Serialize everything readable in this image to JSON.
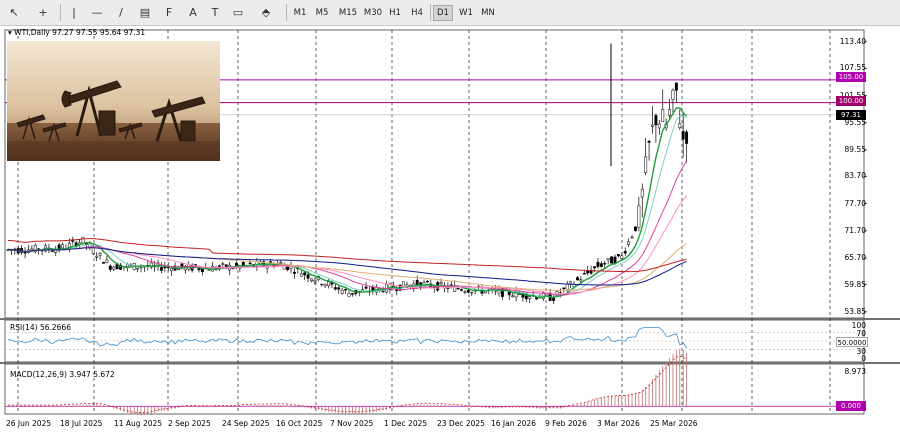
{
  "toolbar": {
    "tools": [
      {
        "name": "cursor-tool",
        "icon": "↖"
      },
      {
        "name": "crosshair-tool",
        "icon": "+"
      },
      {
        "name": "vertical-line-tool",
        "icon": "|"
      },
      {
        "name": "horizontal-line-tool",
        "icon": "—"
      },
      {
        "name": "trendline-tool",
        "icon": "/"
      },
      {
        "name": "channel-tool",
        "icon": "▤"
      },
      {
        "name": "fibonacci-tool",
        "icon": "F"
      },
      {
        "name": "text-tool",
        "icon": "A"
      },
      {
        "name": "label-tool",
        "icon": "T"
      },
      {
        "name": "rectangle-tool",
        "icon": "▭"
      },
      {
        "name": "arrows-tool",
        "icon": "⬘"
      }
    ],
    "timeframes": [
      "M1",
      "M5",
      "M15",
      "M30",
      "H1",
      "H4",
      "D1",
      "W1",
      "MN"
    ],
    "active_timeframe": "D1"
  },
  "chart": {
    "header": "WTI,Daily  97.27 97.55 95.64 97.31",
    "current_price": "97.31",
    "levels": [
      {
        "label": "105.00",
        "value": 105.0,
        "color": "#b000b0"
      },
      {
        "label": "100.00",
        "value": 100.0,
        "color": "#a0006a"
      }
    ],
    "price_axis": [
      "113.40",
      "107.55",
      "101.55",
      "95.55",
      "89.55",
      "83.70",
      "77.70",
      "71.70",
      "65.70",
      "59.85",
      "53.85"
    ],
    "dates": [
      "26 Jun 2025",
      "18 Jul 2025",
      "11 Aug 2025",
      "2 Sep 2025",
      "24 Sep 2025",
      "16 Oct 2025",
      "7 Nov 2025",
      "1 Dec 2025",
      "23 Dec 2025",
      "16 Jan 2026",
      "9 Feb 2026",
      "3 Mar 2026",
      "25 Mar 2026"
    ]
  },
  "rsi": {
    "label": "RSI(14) 56.2666",
    "levels": [
      "100",
      "70",
      "50.0000",
      "30",
      "0"
    ]
  },
  "macd": {
    "label": "MACD(12,26,9) 3.947 5.672",
    "axis_top": "8.973",
    "zero_label": "0.000"
  },
  "colors": {
    "level_105": "#b000b0",
    "level_100": "#a0006a",
    "price_tag": "#000000",
    "candle": "#000000",
    "ma_fast": "#1f9e3a",
    "ma_teal": "#7fd0c8",
    "ma_pink": "#ff8fc0",
    "ma_magenta": "#e040a0",
    "ma_navy": "#0a1a8a",
    "ma_red": "#c02020",
    "ma_tan": "#e0b070",
    "rsi_line": "#3a8fd0",
    "macd_hist": "#c07070",
    "macd_signal": "#cc2020"
  }
}
